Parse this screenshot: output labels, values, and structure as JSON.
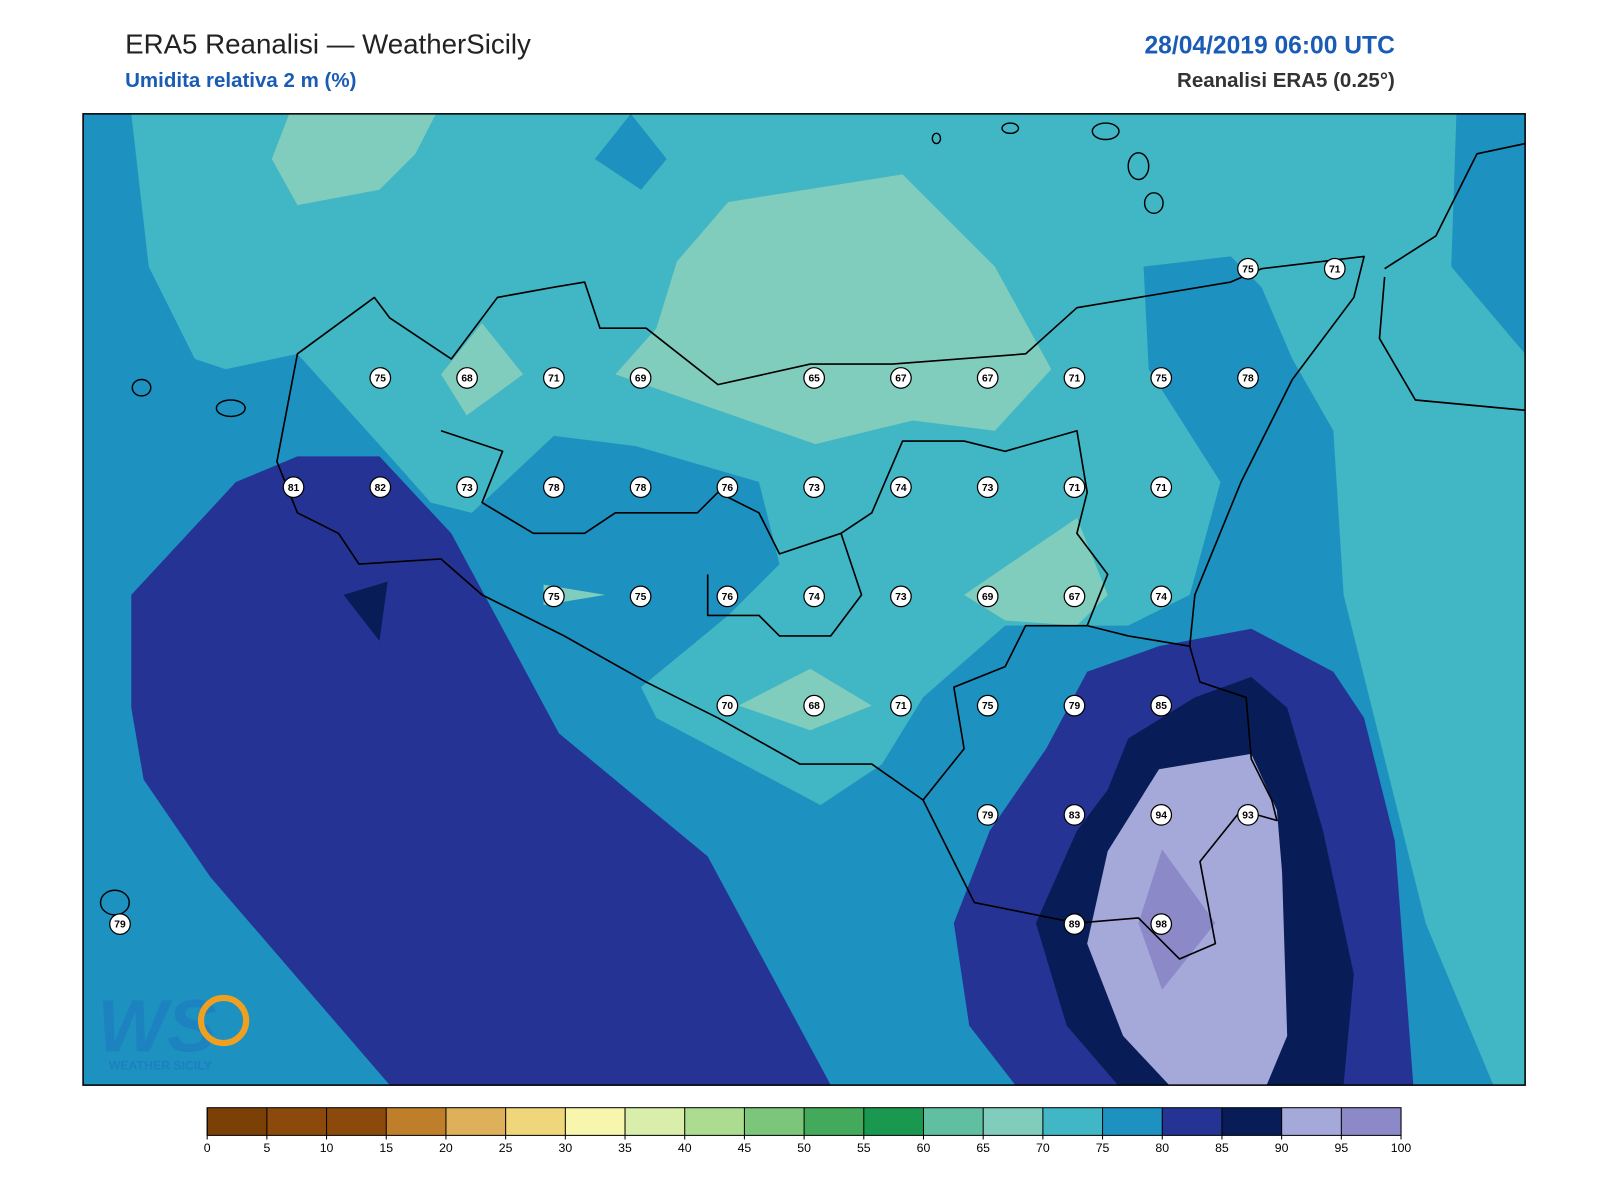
{
  "header": {
    "title": "ERA5 Reanalisi — WeatherSicily",
    "subtitle": "Umidita relativa 2 m (%)",
    "date": "28/04/2019 06:00 UTC",
    "source": "Reanalisi ERA5 (0.25°)"
  },
  "stations": {
    "rows": [
      [
        null,
        null,
        null,
        null,
        null,
        null,
        null,
        null,
        null,
        null,
        null,
        null,
        null,
        75,
        71
      ],
      [
        null,
        null,
        null,
        75,
        68,
        71,
        69,
        null,
        65,
        67,
        67,
        71,
        75,
        78,
        null
      ],
      [
        null,
        null,
        81,
        82,
        73,
        78,
        78,
        76,
        73,
        74,
        73,
        71,
        71,
        null,
        null
      ],
      [
        null,
        null,
        null,
        null,
        null,
        75,
        75,
        76,
        74,
        73,
        69,
        67,
        74,
        null,
        null
      ],
      [
        null,
        null,
        null,
        null,
        null,
        null,
        null,
        70,
        68,
        71,
        75,
        79,
        85,
        null,
        null
      ],
      [
        null,
        null,
        null,
        null,
        null,
        null,
        null,
        null,
        null,
        null,
        79,
        83,
        94,
        93,
        null
      ],
      [
        79,
        null,
        null,
        null,
        null,
        null,
        null,
        null,
        null,
        null,
        null,
        89,
        98,
        null,
        null
      ]
    ]
  },
  "colorbar": {
    "ticks": [
      0,
      5,
      10,
      15,
      20,
      25,
      30,
      35,
      40,
      45,
      50,
      55,
      60,
      65,
      70,
      75,
      80,
      85,
      90,
      95,
      100
    ],
    "colors": [
      "#7a4006",
      "#8b4a0c",
      "#8b4a0c",
      "#bf7f2a",
      "#dfb05a",
      "#f0d67a",
      "#f7f6ac",
      "#d9eeaa",
      "#acdc8f",
      "#7bc67a",
      "#43aa5b",
      "#1a9850",
      "#5fbfa0",
      "#80ccbd",
      "#41b6c4",
      "#1d91c0",
      "#253494",
      "#081d58",
      "#a5a9da",
      "#8b89c8"
    ]
  },
  "logo": {
    "mark": "WS",
    "text": "WEATHER SICILY"
  }
}
